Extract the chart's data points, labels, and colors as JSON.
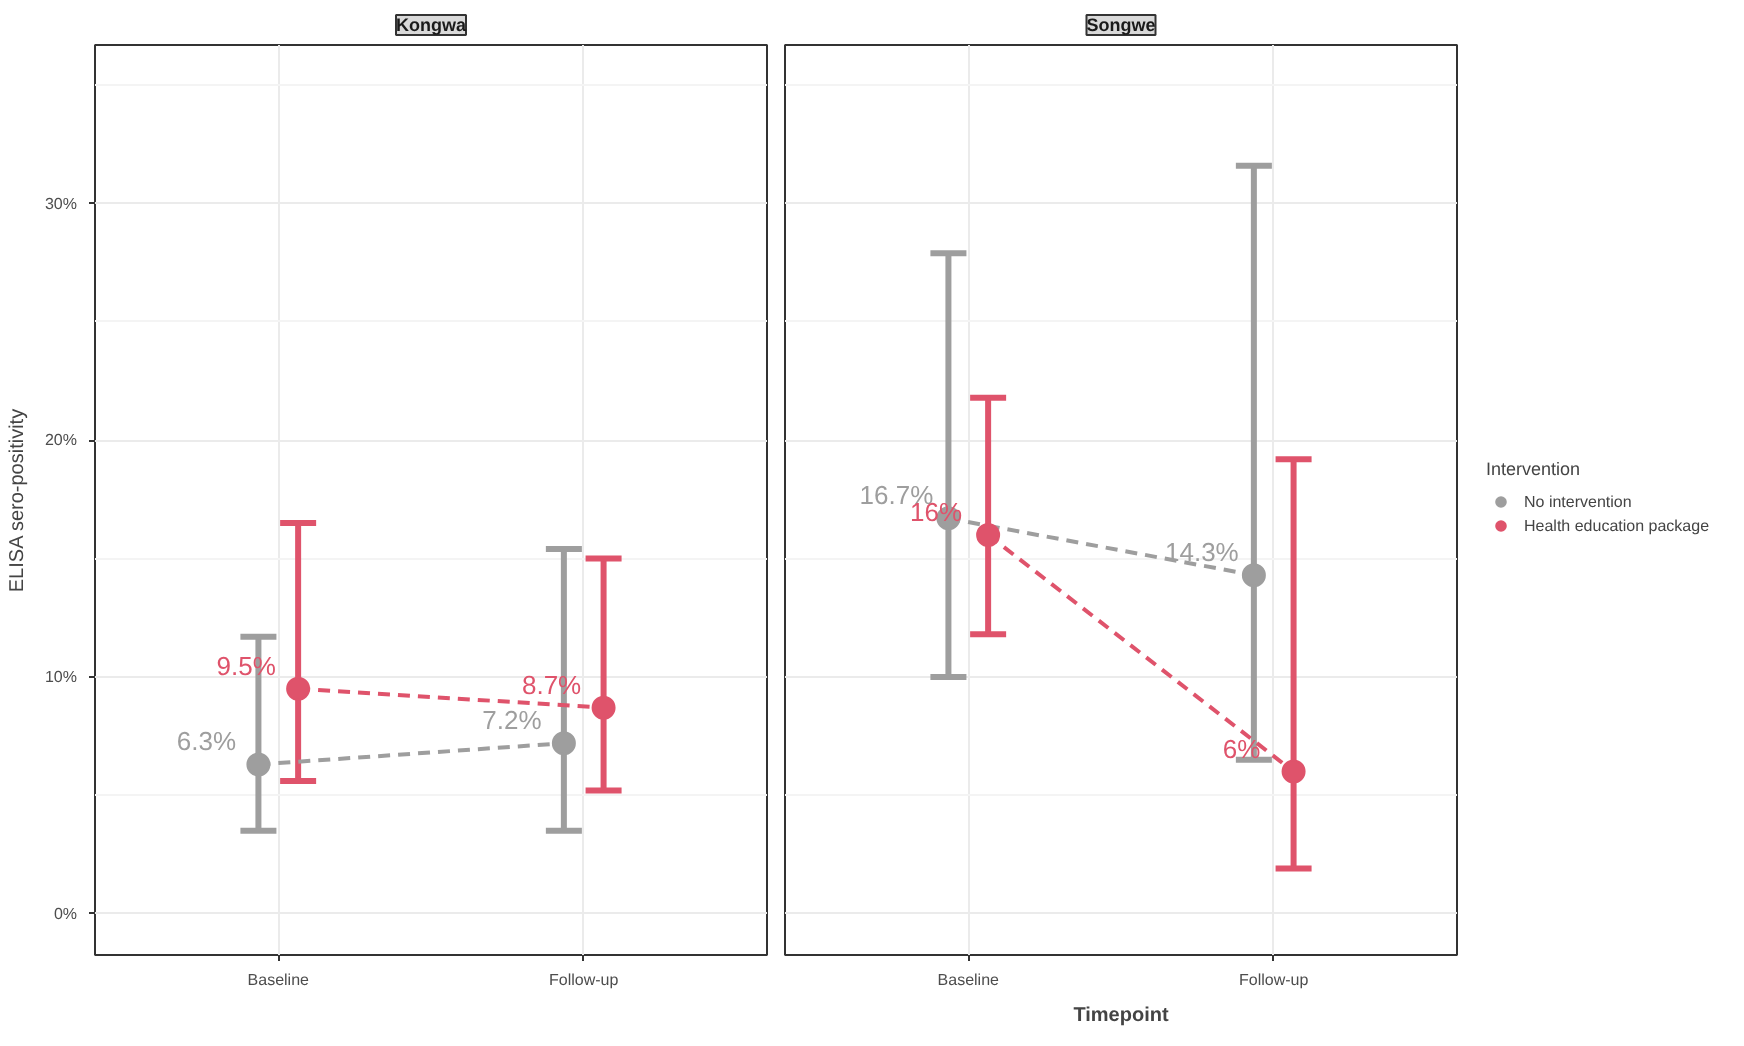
{
  "chart_data": [
    {
      "type": "line",
      "title": "Kongwa",
      "ylabel": "ELISA sero-positivity",
      "categories": [
        "Baseline",
        "Follow-up"
      ],
      "ylim": [
        -1.75,
        36.7
      ],
      "yticks": [
        {
          "value": 0,
          "label": "0%"
        },
        {
          "value": 10,
          "label": "10%"
        },
        {
          "value": 20,
          "label": "20%"
        },
        {
          "value": 30,
          "label": "30%"
        }
      ],
      "grid": true,
      "marker": "circle",
      "line_style": "dashed",
      "series": [
        {
          "color": "#9e9e9e",
          "values": [
            6.3,
            7.2
          ],
          "errors": [
            [
              3.5,
              11.7
            ],
            [
              3.5,
              15.4
            ]
          ],
          "value_labels": [
            "6.3%",
            "7.2%"
          ]
        },
        {
          "color": "#df536b",
          "values": [
            9.5,
            8.7
          ],
          "errors": [
            [
              5.6,
              16.5
            ],
            [
              5.2,
              15.0
            ]
          ],
          "value_labels": [
            "9.5%",
            "8.7%"
          ]
        }
      ]
    },
    {
      "type": "line",
      "title": "Songwe",
      "xlabel": "Timepoint",
      "legend_title": "Intervention",
      "categories": [
        "Baseline",
        "Follow-up"
      ],
      "ylim": [
        -1.75,
        36.7
      ],
      "yticks": [
        0,
        10,
        20,
        30
      ],
      "tick_labels": "x",
      "grid": true,
      "legend": "right",
      "marker": "circle",
      "line_style": "dashed",
      "series": [
        {
          "name": "No intervention",
          "color": "#9e9e9e",
          "values": [
            16.7,
            14.3
          ],
          "errors": [
            [
              10.0,
              27.9
            ],
            [
              6.5,
              31.6
            ]
          ],
          "value_labels": [
            "16.7%",
            "14.3%"
          ]
        },
        {
          "name": "Health education package",
          "color": "#df536b",
          "values": [
            16,
            6
          ],
          "errors": [
            [
              11.8,
              21.8
            ],
            [
              1.9,
              19.2
            ]
          ],
          "value_labels": [
            "16%",
            "6%"
          ]
        }
      ]
    }
  ]
}
